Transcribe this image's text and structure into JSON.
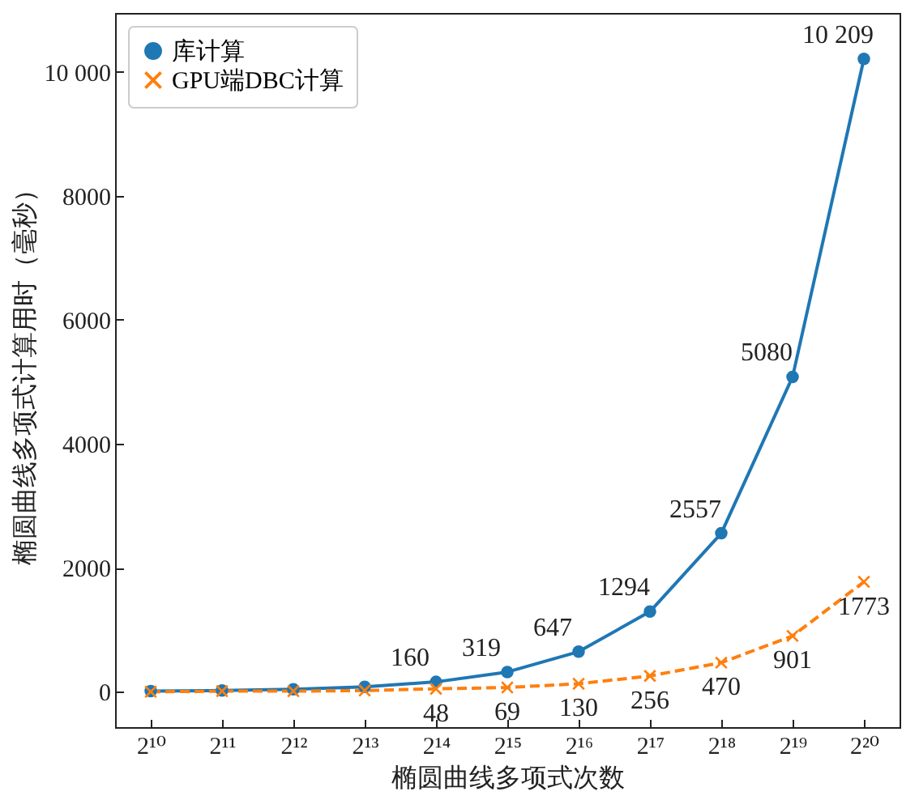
{
  "chart_data": {
    "type": "line",
    "xlabel": "椭圆曲线多项式次数",
    "ylabel": "椭圆曲线多项式计算用时（毫秒）",
    "categories": [
      "2¹⁰",
      "2¹¹",
      "2¹²",
      "2¹³",
      "2¹⁴",
      "2¹⁵",
      "2¹⁶",
      "2¹⁷",
      "2¹⁸",
      "2¹⁹",
      "2²⁰"
    ],
    "series": [
      {
        "name": "库计算",
        "color": "#1f77b4",
        "marker": "circle",
        "line_style": "solid",
        "values": [
          10,
          20,
          40,
          80,
          160,
          319,
          647,
          1294,
          2557,
          5080,
          10209
        ],
        "value_labels": [
          null,
          null,
          null,
          null,
          "160",
          "319",
          "647",
          "1294",
          "2557",
          "5080",
          "10 209"
        ]
      },
      {
        "name": "GPU端DBC计算",
        "color": "#ff7f0e",
        "marker": "cross",
        "line_style": "dashed",
        "values": [
          0,
          10,
          10,
          20,
          48,
          69,
          130,
          256,
          470,
          901,
          1773
        ],
        "value_labels": [
          null,
          null,
          null,
          null,
          "48",
          "69",
          "130",
          "256",
          "470",
          "901",
          "1773"
        ]
      }
    ],
    "ylim": [
      -570,
      10950
    ],
    "yticks": [
      0,
      2000,
      4000,
      6000,
      8000,
      {
        "value": 10000,
        "label": "10 000"
      }
    ],
    "grid": false,
    "legend": "top left"
  }
}
